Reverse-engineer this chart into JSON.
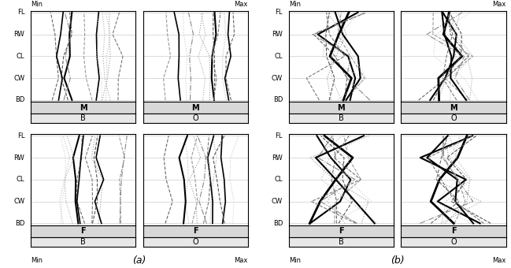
{
  "figure_size": [
    6.49,
    3.4
  ],
  "dpi": 100,
  "axes_labels": [
    "BD",
    "CW",
    "CL",
    "RW",
    "FL"
  ],
  "panel_titles_row": [
    "M",
    "F"
  ],
  "panel_titles_col": [
    "B",
    "O"
  ],
  "subplot_labels": [
    "(a)",
    "(b)"
  ],
  "min_label": "Min",
  "max_label": "Max",
  "background_color": "#f0f0f0",
  "line_color_dark": "#000000",
  "line_color_gray": "#888888",
  "line_color_light": "#bbbbbb",
  "n_lines_per_panel": 12,
  "seed": 42
}
